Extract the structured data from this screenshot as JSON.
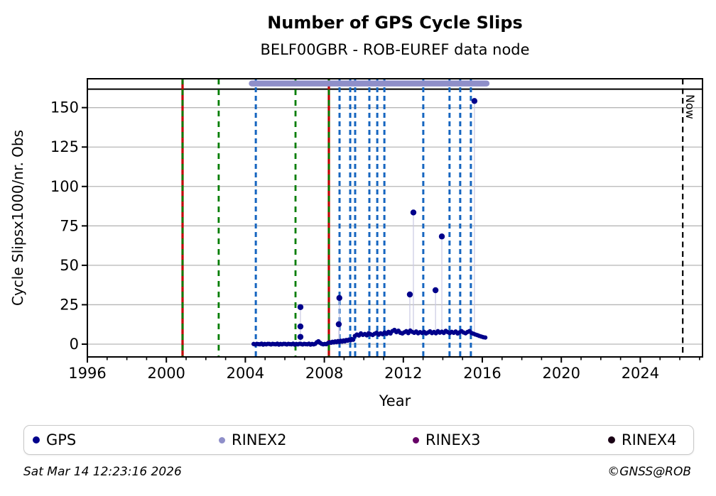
{
  "page": {
    "title": "Number of GPS Cycle Slips",
    "subtitle": "BELF00GBR - ROB-EUREF data node",
    "footer_left": "Sat Mar 14 12:23:16 2026",
    "footer_right": "©GNSS@ROB"
  },
  "legend": {
    "items": [
      {
        "label": "GPS",
        "color": "#00008b",
        "r": 5
      },
      {
        "label": "RINEX2",
        "color": "#8f8fc9",
        "r": 4.5
      },
      {
        "label": "RINEX3",
        "color": "#660066",
        "r": 4.5
      },
      {
        "label": "RINEX4",
        "color": "#190114",
        "r": 5
      }
    ]
  },
  "colors": {
    "gps_marker": "#00008b",
    "rinex2_bar": "#8f8fc9",
    "event_blue": "#1565c0",
    "event_green": "#007d00",
    "event_red": "#c00000",
    "grid": "#b6b6b6",
    "stem": "#c9c9e3",
    "axis": "#000000"
  },
  "chart_data": {
    "type": "scatter",
    "title": "Number of GPS Cycle Slips",
    "subtitle": "BELF00GBR - ROB-EUREF data node",
    "xlabel": "Year",
    "ylabel": "Cycle Slipsx1000/nr. Obs",
    "xlim": [
      1996,
      2027.15
    ],
    "ylim": [
      -8.1,
      168.3
    ],
    "x_major_ticks": [
      1996,
      2000,
      2004,
      2008,
      2012,
      2016,
      2020,
      2024
    ],
    "x_minor_tick_step": 1,
    "y_ticks": [
      0,
      25,
      50,
      75,
      100,
      125,
      150
    ],
    "grid": "horizontal-only",
    "legend_position": "bottom",
    "separator_line_value": 161.7,
    "rinex2_bar": {
      "start": 2004.33,
      "end": 2016.21,
      "value": 165.3
    },
    "now_line": {
      "year": 2026.15,
      "label": "Now"
    },
    "event_lines": {
      "red_solid": [
        2000.82,
        2008.23
      ],
      "green_dashed": [
        2000.82,
        2002.65,
        2006.54,
        2008.23
      ],
      "blue_dashed": [
        2004.53,
        2008.77,
        2009.31,
        2009.56,
        2010.28,
        2010.68,
        2011.04,
        2013.01,
        2014.34,
        2014.88,
        2015.42
      ]
    },
    "series": [
      {
        "name": "GPS",
        "band_points": [
          [
            2004.42,
            0.1
          ],
          [
            2004.5,
            -0.2
          ],
          [
            2004.58,
            0.2
          ],
          [
            2004.66,
            0
          ],
          [
            2004.74,
            -0.1
          ],
          [
            2004.82,
            0.3
          ],
          [
            2004.9,
            -0.3
          ],
          [
            2004.98,
            0.1
          ],
          [
            2005.06,
            -0.15
          ],
          [
            2005.14,
            0.2
          ],
          [
            2005.22,
            0.1
          ],
          [
            2005.3,
            -0.2
          ],
          [
            2005.38,
            0.2
          ],
          [
            2005.46,
            0
          ],
          [
            2005.54,
            -0.1
          ],
          [
            2005.62,
            0.3
          ],
          [
            2005.7,
            -0.3
          ],
          [
            2005.78,
            0.1
          ],
          [
            2005.86,
            -0.15
          ],
          [
            2005.94,
            0.2
          ],
          [
            2006.02,
            0.1
          ],
          [
            2006.1,
            -0.2
          ],
          [
            2006.18,
            0.2
          ],
          [
            2006.26,
            0
          ],
          [
            2006.34,
            -0.1
          ],
          [
            2006.42,
            0.3
          ],
          [
            2006.5,
            -0.3
          ],
          [
            2006.58,
            0.1
          ],
          [
            2006.66,
            -0.15
          ],
          [
            2006.74,
            0.2
          ],
          [
            2006.82,
            0.1
          ],
          [
            2006.9,
            -0.2
          ],
          [
            2006.98,
            0.2
          ],
          [
            2007.06,
            0
          ],
          [
            2007.14,
            -0.1
          ],
          [
            2007.22,
            0.3
          ],
          [
            2007.3,
            -0.3
          ],
          [
            2007.38,
            0.1
          ],
          [
            2007.46,
            -0.15
          ],
          [
            2007.54,
            0.2
          ],
          [
            2007.62,
            1.2
          ],
          [
            2007.7,
            1.8
          ],
          [
            2007.78,
            0.9
          ],
          [
            2007.86,
            0.2
          ],
          [
            2007.94,
            -0.1
          ],
          [
            2008.02,
            0.1
          ],
          [
            2008.1,
            0
          ],
          [
            2008.2,
            0.8
          ],
          [
            2008.27,
            1.2
          ],
          [
            2008.34,
            0.9
          ],
          [
            2008.41,
            1.5
          ],
          [
            2008.48,
            1.1
          ],
          [
            2008.55,
            1.7
          ],
          [
            2008.62,
            1.3
          ],
          [
            2008.69,
            1.9
          ],
          [
            2008.76,
            1.4
          ],
          [
            2008.83,
            2.1
          ],
          [
            2008.9,
            1.6
          ],
          [
            2008.97,
            2.3
          ],
          [
            2009.04,
            1.8
          ],
          [
            2009.11,
            2.6
          ],
          [
            2009.18,
            2.2
          ],
          [
            2009.25,
            2.9
          ],
          [
            2009.32,
            2.4
          ],
          [
            2009.39,
            3.2
          ],
          [
            2009.46,
            2.8
          ],
          [
            2009.55,
            5.2
          ],
          [
            2009.65,
            6.1
          ],
          [
            2009.75,
            5.5
          ],
          [
            2009.85,
            6.8
          ],
          [
            2009.95,
            5.9
          ],
          [
            2010.05,
            6.4
          ],
          [
            2010.15,
            5.6
          ],
          [
            2010.25,
            7.0
          ],
          [
            2010.35,
            6.2
          ],
          [
            2010.45,
            5.8
          ],
          [
            2010.55,
            6.6
          ],
          [
            2010.65,
            7.2
          ],
          [
            2010.75,
            6.0
          ],
          [
            2010.85,
            6.9
          ],
          [
            2010.95,
            6.3
          ],
          [
            2011.05,
            7.4
          ],
          [
            2011.15,
            6.5
          ],
          [
            2011.25,
            7.8
          ],
          [
            2011.35,
            6.8
          ],
          [
            2011.45,
            8.3
          ],
          [
            2011.55,
            9.0
          ],
          [
            2011.65,
            7.6
          ],
          [
            2011.75,
            8.5
          ],
          [
            2011.85,
            7.2
          ],
          [
            2011.95,
            6.8
          ],
          [
            2012.05,
            7.5
          ],
          [
            2012.15,
            8.2
          ],
          [
            2012.25,
            7.0
          ],
          [
            2012.35,
            8.6
          ],
          [
            2012.45,
            7.8
          ],
          [
            2012.55,
            7.2
          ],
          [
            2012.65,
            8.0
          ],
          [
            2012.75,
            6.9
          ],
          [
            2012.85,
            7.6
          ],
          [
            2012.95,
            7.1
          ],
          [
            2013.05,
            7.8
          ],
          [
            2013.15,
            6.8
          ],
          [
            2013.25,
            7.4
          ],
          [
            2013.35,
            8.1
          ],
          [
            2013.45,
            7.0
          ],
          [
            2013.55,
            7.7
          ],
          [
            2013.65,
            6.9
          ],
          [
            2013.75,
            8.2
          ],
          [
            2013.85,
            7.3
          ],
          [
            2013.95,
            7.9
          ],
          [
            2014.05,
            7.1
          ],
          [
            2014.15,
            8.4
          ],
          [
            2014.25,
            7.6
          ],
          [
            2014.35,
            7.0
          ],
          [
            2014.45,
            7.8
          ],
          [
            2014.55,
            7.2
          ],
          [
            2014.65,
            8.0
          ],
          [
            2014.75,
            6.8
          ],
          [
            2014.85,
            7.5
          ],
          [
            2014.95,
            8.2
          ],
          [
            2015.05,
            7.4
          ],
          [
            2015.15,
            6.9
          ],
          [
            2015.25,
            7.7
          ],
          [
            2015.35,
            8.3
          ],
          [
            2015.45,
            7.1
          ],
          [
            2015.55,
            6.6
          ],
          [
            2015.65,
            6.1
          ],
          [
            2015.75,
            5.7
          ],
          [
            2015.85,
            5.2
          ],
          [
            2015.95,
            4.8
          ],
          [
            2016.05,
            4.4
          ],
          [
            2016.15,
            4.2
          ]
        ],
        "outliers": [
          {
            "x": 2006.79,
            "y": 4.6,
            "stem_to": 0
          },
          {
            "x": 2006.79,
            "y": 11.2,
            "stem_to": 0
          },
          {
            "x": 2006.79,
            "y": 23.5,
            "stem_to": 0
          },
          {
            "x": 2008.73,
            "y": 12.6,
            "stem_to": 1.4
          },
          {
            "x": 2008.76,
            "y": 29.3,
            "stem_to": 1.4
          },
          {
            "x": 2012.33,
            "y": 31.5,
            "stem_to": 7.5
          },
          {
            "x": 2012.51,
            "y": 83.5,
            "stem_to": 7.5
          },
          {
            "x": 2013.63,
            "y": 34.2,
            "stem_to": 7.5
          },
          {
            "x": 2013.95,
            "y": 68.3,
            "stem_to": 7.5
          },
          {
            "x": 2015.6,
            "y": 154.2,
            "stem_to": 7.5
          }
        ]
      }
    ]
  }
}
